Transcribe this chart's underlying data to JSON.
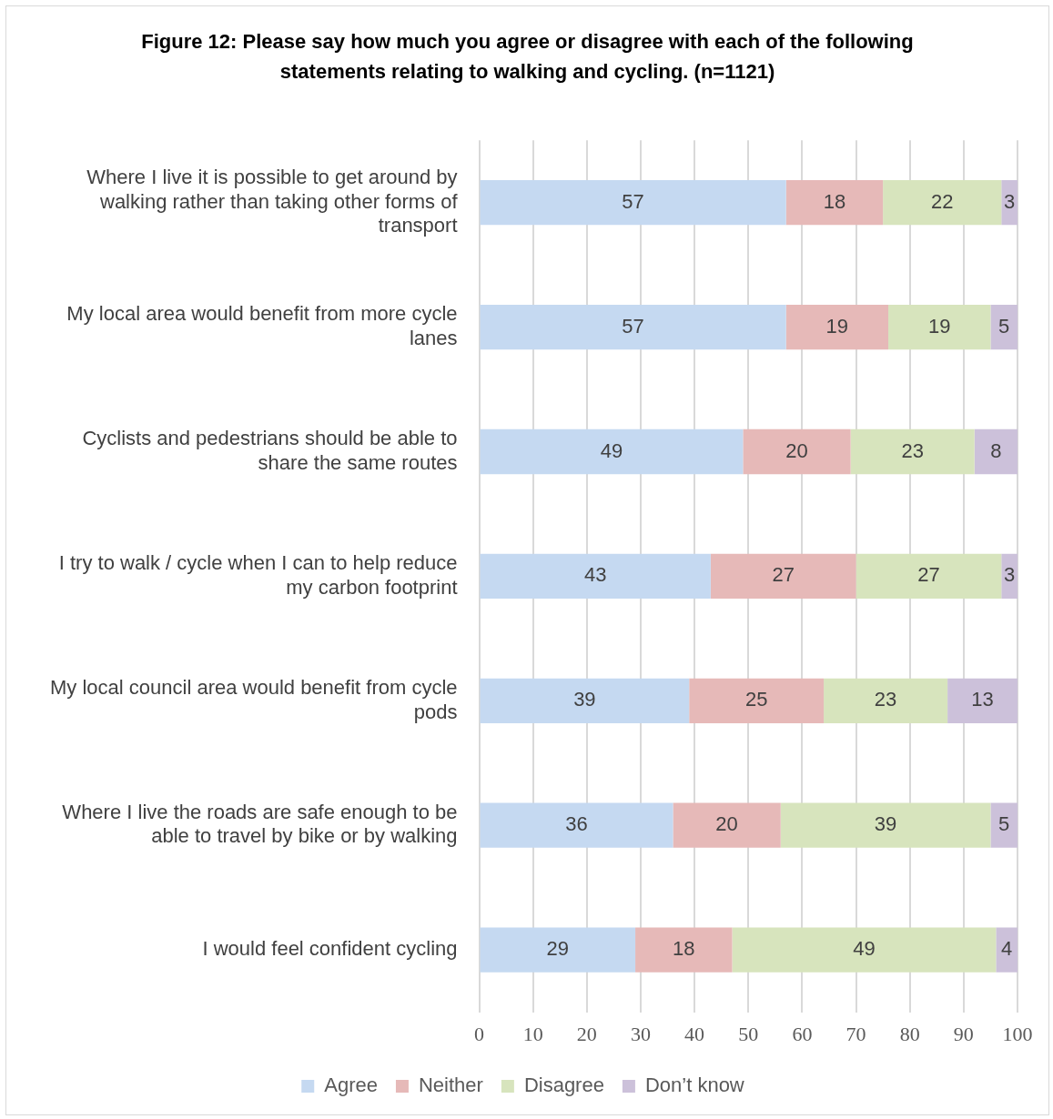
{
  "chart_data": {
    "type": "bar",
    "orientation": "horizontal",
    "stacked": true,
    "title": "Figure 12: Please say how much you agree or disagree with each of the following statements relating to walking and cycling. (n=1121)",
    "categories": [
      "Where I live it is possible to get around by walking rather than taking other forms of transport",
      "My local area would benefit from more cycle lanes",
      "Cyclists and pedestrians should be able to share the same routes",
      "I try to walk / cycle when I can to help reduce my carbon footprint",
      "My local council area would benefit from cycle pods",
      "Where I live the roads are safe enough to be able to travel by bike or by walking",
      "I would feel confident cycling"
    ],
    "series": [
      {
        "name": "Agree",
        "color": "#c5d9f1",
        "values": [
          57,
          57,
          49,
          43,
          39,
          36,
          29
        ]
      },
      {
        "name": "Neither",
        "color": "#e6b9b8",
        "values": [
          18,
          19,
          20,
          27,
          25,
          20,
          18
        ]
      },
      {
        "name": "Disagree",
        "color": "#d7e4bd",
        "values": [
          22,
          19,
          23,
          27,
          23,
          39,
          49
        ]
      },
      {
        "name": "Don’t know",
        "color": "#ccc1da",
        "values": [
          3,
          5,
          8,
          3,
          13,
          5,
          4
        ]
      }
    ],
    "xlim": [
      0,
      100
    ],
    "xticks": [
      0,
      10,
      20,
      30,
      40,
      50,
      60,
      70,
      80,
      90,
      100
    ],
    "grid": "x",
    "legend": "bottom",
    "data_labels": true
  }
}
